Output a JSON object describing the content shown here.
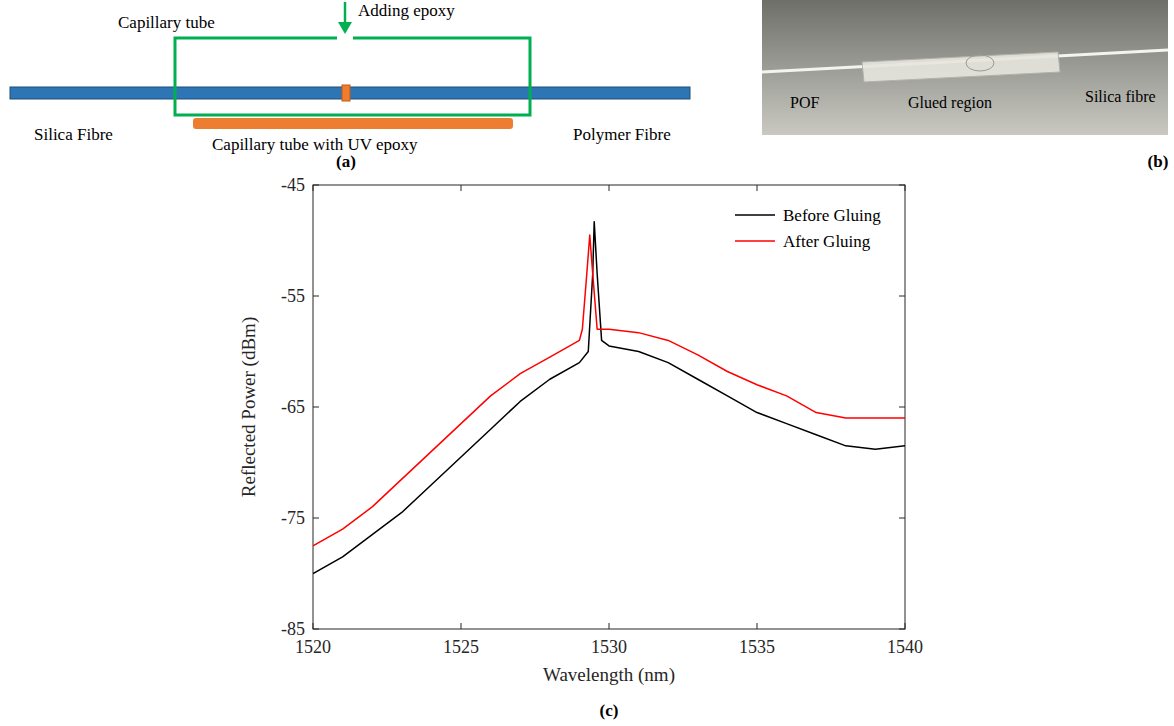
{
  "diagram": {
    "panel_label": "(a)",
    "capillary_tube": "Capillary tube",
    "adding_epoxy": "Adding epoxy",
    "silica_fibre": "Silica Fibre",
    "polymer_fibre": "Polymer Fibre",
    "tube_with_epoxy": "Capillary tube with UV epoxy"
  },
  "photo": {
    "panel_label": "(b)",
    "pof": "POF",
    "glued_region": "Glued region",
    "silica_fibre": "Silica fibre"
  },
  "chart_data": {
    "type": "line",
    "panel_label": "(c)",
    "x_label": "Wavelength (nm)",
    "y_label": "Reflected Power (dBm)",
    "xlim": [
      1520,
      1540
    ],
    "ylim": [
      -85,
      -45
    ],
    "xticks": [
      1520,
      1525,
      1530,
      1535,
      1540
    ],
    "yticks": [
      -85,
      -75,
      -65,
      -55,
      -45
    ],
    "grid": false,
    "legend": "upper right",
    "series": [
      {
        "name": "Before Gluing",
        "color": "#000000",
        "x": [
          1520,
          1521,
          1522,
          1523,
          1524,
          1525,
          1526,
          1527,
          1528,
          1529,
          1529.3,
          1529.45,
          1529.5,
          1529.6,
          1529.75,
          1530,
          1531,
          1532,
          1533,
          1534,
          1535,
          1536,
          1537,
          1538,
          1539,
          1540
        ],
        "values": [
          -80,
          -78.5,
          -76.5,
          -74.5,
          -72,
          -69.5,
          -67,
          -64.5,
          -62.5,
          -61,
          -60,
          -53,
          -48.3,
          -53,
          -59,
          -59.5,
          -60,
          -61,
          -62.5,
          -64,
          -65.5,
          -66.5,
          -67.5,
          -68.5,
          -68.8,
          -68.5
        ]
      },
      {
        "name": "After Gluing",
        "color": "#ff0000",
        "x": [
          1520,
          1521,
          1522,
          1523,
          1524,
          1525,
          1526,
          1527,
          1528,
          1529,
          1529.1,
          1529.25,
          1529.35,
          1529.45,
          1529.6,
          1530,
          1531,
          1532,
          1533,
          1534,
          1535,
          1536,
          1537,
          1538,
          1539,
          1540
        ],
        "values": [
          -77.5,
          -76,
          -74,
          -71.5,
          -69,
          -66.5,
          -64,
          -62,
          -60.5,
          -59,
          -58,
          -53,
          -49.5,
          -53,
          -58,
          -58,
          -58.3,
          -59,
          -60.3,
          -61.8,
          -63,
          -64,
          -65.5,
          -66,
          -66,
          -66
        ]
      }
    ]
  }
}
